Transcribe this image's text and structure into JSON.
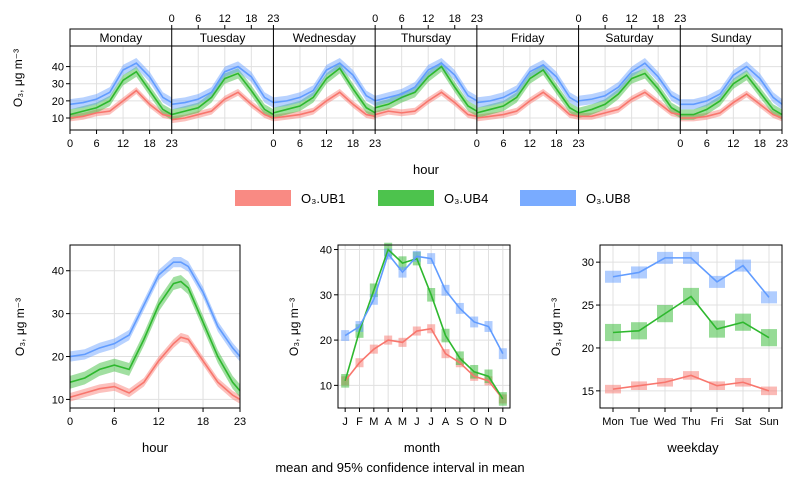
{
  "legend": [
    {
      "label": "O₃.UB1",
      "series": "UB1"
    },
    {
      "label": "O₃.UB4",
      "series": "UB4"
    },
    {
      "label": "O₃.UB8",
      "series": "UB8"
    }
  ],
  "colors": {
    "UB1": "#f8766d",
    "UB4": "#2eb82e",
    "UB8": "#619cff",
    "grid": "#e0e0e0",
    "strip_bg": "#ffffff"
  },
  "ylabel": "O₃,  μg m⁻³",
  "footer": "mean and 95% confidence interval in mean",
  "chart_data": [
    {
      "type": "line",
      "id": "week",
      "xlabel": "hour",
      "ylabel": "O₃,  μg m⁻³",
      "panels": [
        "Monday",
        "Tuesday",
        "Wednesday",
        "Thursday",
        "Friday",
        "Saturday",
        "Sunday"
      ],
      "x_ticks": [
        "0",
        "6",
        "12",
        "18",
        "23"
      ],
      "y_ticks": [
        10,
        20,
        30,
        40
      ],
      "ylim": [
        3,
        52
      ],
      "hours": [
        0,
        3,
        6,
        9,
        12,
        15,
        18,
        21,
        23
      ],
      "band_half_width": {
        "UB1": 2.0,
        "UB4": 3.0,
        "UB8": 3.0
      },
      "series": [
        {
          "name": "UB1",
          "values": [
            [
              10,
              11,
              13,
              14,
              20,
              26,
              18,
              12,
              11
            ],
            [
              9,
              10,
              12,
              14,
              21,
              25,
              18,
              12,
              10
            ],
            [
              10,
              11,
              12,
              14,
              20,
              25,
              18,
              12,
              11
            ],
            [
              12,
              14,
              13,
              14,
              20,
              25,
              19,
              12,
              11
            ],
            [
              10,
              11,
              12,
              14,
              20,
              25,
              19,
              12,
              11
            ],
            [
              11,
              11,
              13,
              15,
              21,
              25,
              19,
              13,
              12
            ],
            [
              10,
              10,
              11,
              13,
              19,
              24,
              18,
              12,
              10
            ]
          ]
        },
        {
          "name": "UB4",
          "values": [
            [
              12,
              14,
              16,
              20,
              32,
              37,
              26,
              15,
              12
            ],
            [
              12,
              14,
              16,
              22,
              33,
              36,
              26,
              15,
              12
            ],
            [
              13,
              15,
              17,
              22,
              33,
              39,
              27,
              16,
              13
            ],
            [
              16,
              18,
              22,
              25,
              34,
              40,
              28,
              17,
              14
            ],
            [
              13,
              15,
              17,
              22,
              33,
              38,
              27,
              16,
              13
            ],
            [
              13,
              15,
              18,
              24,
              33,
              36,
              27,
              16,
              13
            ],
            [
              12,
              12,
              15,
              20,
              30,
              35,
              25,
              15,
              12
            ]
          ]
        },
        {
          "name": "UB8",
          "values": [
            [
              18,
              19,
              21,
              25,
              38,
              42,
              34,
              22,
              19
            ],
            [
              18,
              19,
              21,
              25,
              37,
              40,
              34,
              22,
              19
            ],
            [
              19,
              20,
              22,
              26,
              38,
              42,
              35,
              23,
              20
            ],
            [
              20,
              22,
              24,
              28,
              38,
              42,
              35,
              23,
              20
            ],
            [
              19,
              20,
              22,
              26,
              37,
              41,
              34,
              22,
              19
            ],
            [
              20,
              21,
              23,
              28,
              37,
              42,
              34,
              23,
              20
            ],
            [
              18,
              18,
              20,
              24,
              35,
              40,
              33,
              22,
              18
            ]
          ]
        }
      ]
    },
    {
      "type": "line",
      "id": "hour",
      "xlabel": "hour",
      "ylabel": "O₃,  μg m⁻³",
      "x_ticks": [
        0,
        6,
        12,
        18,
        23
      ],
      "y_ticks": [
        10,
        20,
        30,
        40
      ],
      "xlim": [
        0,
        23
      ],
      "ylim": [
        8,
        46
      ],
      "band_half_width": {
        "UB1": 1.0,
        "UB4": 1.5,
        "UB8": 1.2
      },
      "x": [
        0,
        2,
        4,
        6,
        8,
        10,
        12,
        14,
        15,
        16,
        18,
        20,
        22,
        23
      ],
      "series": [
        {
          "name": "UB1",
          "values": [
            10.5,
            11.5,
            12.5,
            13,
            11.5,
            14,
            19,
            23,
            24.5,
            24,
            19,
            14,
            11,
            10
          ]
        },
        {
          "name": "UB4",
          "values": [
            14,
            15,
            17,
            18,
            17,
            24,
            32,
            37,
            37.5,
            36,
            28,
            20,
            14,
            12
          ]
        },
        {
          "name": "UB8",
          "values": [
            20,
            20.5,
            22,
            23,
            25,
            32,
            39,
            42,
            42,
            41,
            35,
            27,
            22,
            20
          ]
        }
      ]
    },
    {
      "type": "line",
      "id": "month",
      "xlabel": "month",
      "ylabel": "O₃,  μg m⁻³",
      "categories": [
        "J",
        "F",
        "M",
        "A",
        "M",
        "J",
        "J",
        "A",
        "S",
        "O",
        "N",
        "D"
      ],
      "y_ticks": [
        10,
        20,
        30,
        40
      ],
      "ylim": [
        5,
        41
      ],
      "band_half_width": {
        "UB1": 1.0,
        "UB4": 1.5,
        "UB8": 1.2
      },
      "series": [
        {
          "name": "UB1",
          "values": [
            11,
            15,
            18,
            20,
            19.5,
            22,
            22.5,
            17,
            15,
            12,
            11,
            7
          ]
        },
        {
          "name": "UB4",
          "values": [
            11,
            22,
            31,
            40,
            37,
            38,
            30,
            21,
            16,
            13,
            12,
            7
          ]
        },
        {
          "name": "UB8",
          "values": [
            21,
            23,
            29,
            39,
            35,
            38.5,
            38,
            31,
            27,
            24,
            23,
            17
          ]
        }
      ]
    },
    {
      "type": "line",
      "id": "weekday",
      "xlabel": "weekday",
      "ylabel": "O₃,  μg m⁻³",
      "categories": [
        "Mon",
        "Tue",
        "Wed",
        "Thu",
        "Fri",
        "Sat",
        "Sun"
      ],
      "y_ticks": [
        15,
        20,
        25,
        30
      ],
      "ylim": [
        13,
        32
      ],
      "band_half_width": {
        "UB1": 0.5,
        "UB4": 1.0,
        "UB8": 0.7
      },
      "series": [
        {
          "name": "UB1",
          "values": [
            15.2,
            15.6,
            16,
            16.8,
            15.6,
            16,
            15
          ]
        },
        {
          "name": "UB4",
          "values": [
            21.8,
            22,
            24,
            26,
            22.2,
            23,
            21.2
          ]
        },
        {
          "name": "UB8",
          "values": [
            28.3,
            28.8,
            30.5,
            30.5,
            27.7,
            29.6,
            25.9
          ]
        }
      ]
    }
  ]
}
